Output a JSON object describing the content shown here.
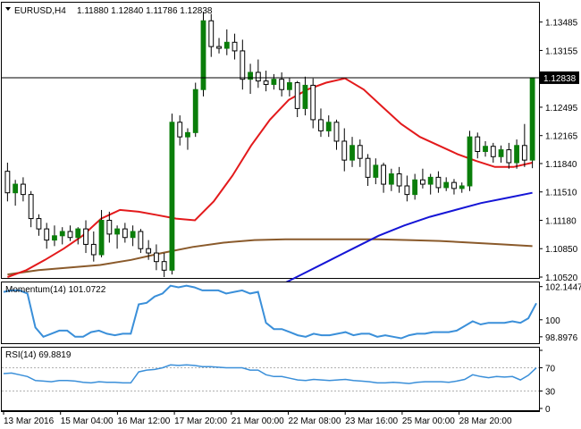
{
  "header": {
    "symbol": "EURUSD,H4",
    "ohlc": "1.11880 1.12840 1.11786 1.12838"
  },
  "colors": {
    "bull_candle": "#0a7e0a",
    "bear_candle": "#0a7e0a",
    "sma_short": "#e31a1c",
    "sma_mid": "#1515d6",
    "sma_long": "#8a5a2b",
    "momentum_line": "#3a8fd9",
    "rsi_line": "#3a8fd9",
    "price_tag_bg": "#000000",
    "price_tag_text": "#ffffff"
  },
  "price_axis": {
    "ticks": [
      "1.13485",
      "1.13155",
      "1.12838",
      "1.12495",
      "1.12165",
      "1.11840",
      "1.11510",
      "1.11180",
      "1.10850",
      "1.10520"
    ],
    "current_tag": "1.12838"
  },
  "x_axis": {
    "labels": [
      "13 Mar 2016",
      "15 Mar 04:00",
      "16 Mar 12:00",
      "17 Mar 20:00",
      "21 Mar 00:00",
      "22 Mar 08:00",
      "23 Mar 16:00",
      "25 Mar 00:00",
      "28 Mar 20:00"
    ]
  },
  "momentum": {
    "title": "Momentum(14) 101.0722",
    "axis_labels": [
      "102.1447",
      "100",
      "98.8976"
    ]
  },
  "rsi": {
    "title": "RSI(14) 69.8819",
    "axis_labels": [
      "70",
      "30",
      "0"
    ]
  },
  "chart_data": [
    {
      "type": "candlestick",
      "title": "EURUSD,H4",
      "ylim": [
        1.1052,
        1.137
      ],
      "candles": [
        {
          "o": 1.1175,
          "h": 1.1185,
          "l": 1.114,
          "c": 1.115
        },
        {
          "o": 1.115,
          "h": 1.1165,
          "l": 1.1135,
          "c": 1.116
        },
        {
          "o": 1.116,
          "h": 1.1168,
          "l": 1.114,
          "c": 1.1148
        },
        {
          "o": 1.1148,
          "h": 1.1152,
          "l": 1.111,
          "c": 1.112
        },
        {
          "o": 1.112,
          "h": 1.1125,
          "l": 1.11,
          "c": 1.1108
        },
        {
          "o": 1.1108,
          "h": 1.1115,
          "l": 1.1085,
          "c": 1.1095
        },
        {
          "o": 1.1095,
          "h": 1.1112,
          "l": 1.1088,
          "c": 1.11
        },
        {
          "o": 1.11,
          "h": 1.111,
          "l": 1.109,
          "c": 1.1105
        },
        {
          "o": 1.1105,
          "h": 1.1112,
          "l": 1.1094,
          "c": 1.1098
        },
        {
          "o": 1.1098,
          "h": 1.111,
          "l": 1.109,
          "c": 1.1108
        },
        {
          "o": 1.1108,
          "h": 1.1118,
          "l": 1.108,
          "c": 1.109
        },
        {
          "o": 1.109,
          "h": 1.1105,
          "l": 1.107,
          "c": 1.1078
        },
        {
          "o": 1.1078,
          "h": 1.113,
          "l": 1.1075,
          "c": 1.1118
        },
        {
          "o": 1.1118,
          "h": 1.1128,
          "l": 1.1092,
          "c": 1.1102
        },
        {
          "o": 1.1102,
          "h": 1.1112,
          "l": 1.1085,
          "c": 1.1108
        },
        {
          "o": 1.1108,
          "h": 1.1115,
          "l": 1.1092,
          "c": 1.1098
        },
        {
          "o": 1.1098,
          "h": 1.1112,
          "l": 1.1088,
          "c": 1.1105
        },
        {
          "o": 1.1105,
          "h": 1.1108,
          "l": 1.108,
          "c": 1.1085
        },
        {
          "o": 1.1085,
          "h": 1.1095,
          "l": 1.1072,
          "c": 1.108
        },
        {
          "o": 1.108,
          "h": 1.109,
          "l": 1.106,
          "c": 1.107
        },
        {
          "o": 1.107,
          "h": 1.108,
          "l": 1.1052,
          "c": 1.106
        },
        {
          "o": 1.106,
          "h": 1.1242,
          "l": 1.1055,
          "c": 1.1232
        },
        {
          "o": 1.1232,
          "h": 1.124,
          "l": 1.1205,
          "c": 1.1215
        },
        {
          "o": 1.1215,
          "h": 1.1225,
          "l": 1.12,
          "c": 1.122
        },
        {
          "o": 1.122,
          "h": 1.1278,
          "l": 1.1215,
          "c": 1.127
        },
        {
          "o": 1.127,
          "h": 1.136,
          "l": 1.1262,
          "c": 1.135
        },
        {
          "o": 1.135,
          "h": 1.1358,
          "l": 1.1308,
          "c": 1.132
        },
        {
          "o": 1.132,
          "h": 1.133,
          "l": 1.1312,
          "c": 1.1318
        },
        {
          "o": 1.1318,
          "h": 1.134,
          "l": 1.131,
          "c": 1.1325
        },
        {
          "o": 1.1325,
          "h": 1.1335,
          "l": 1.1305,
          "c": 1.1315
        },
        {
          "o": 1.1315,
          "h": 1.1328,
          "l": 1.127,
          "c": 1.1282
        },
        {
          "o": 1.1282,
          "h": 1.13,
          "l": 1.1265,
          "c": 1.129
        },
        {
          "o": 1.129,
          "h": 1.1305,
          "l": 1.1272,
          "c": 1.128
        },
        {
          "o": 1.128,
          "h": 1.1292,
          "l": 1.1268,
          "c": 1.1276
        },
        {
          "o": 1.1276,
          "h": 1.1288,
          "l": 1.127,
          "c": 1.1282
        },
        {
          "o": 1.1282,
          "h": 1.129,
          "l": 1.1262,
          "c": 1.127
        },
        {
          "o": 1.127,
          "h": 1.1284,
          "l": 1.1262,
          "c": 1.1278
        },
        {
          "o": 1.1278,
          "h": 1.128,
          "l": 1.1238,
          "c": 1.1248
        },
        {
          "o": 1.1248,
          "h": 1.1285,
          "l": 1.124,
          "c": 1.1275
        },
        {
          "o": 1.1275,
          "h": 1.1283,
          "l": 1.1225,
          "c": 1.1235
        },
        {
          "o": 1.1235,
          "h": 1.1248,
          "l": 1.1215,
          "c": 1.1222
        },
        {
          "o": 1.1222,
          "h": 1.124,
          "l": 1.1215,
          "c": 1.1232
        },
        {
          "o": 1.1232,
          "h": 1.1235,
          "l": 1.12,
          "c": 1.121
        },
        {
          "o": 1.121,
          "h": 1.1225,
          "l": 1.1175,
          "c": 1.1188
        },
        {
          "o": 1.1188,
          "h": 1.1215,
          "l": 1.118,
          "c": 1.1205
        },
        {
          "o": 1.1205,
          "h": 1.1212,
          "l": 1.118,
          "c": 1.119
        },
        {
          "o": 1.119,
          "h": 1.1195,
          "l": 1.1158,
          "c": 1.1168
        },
        {
          "o": 1.1168,
          "h": 1.119,
          "l": 1.116,
          "c": 1.1182
        },
        {
          "o": 1.1182,
          "h": 1.1185,
          "l": 1.115,
          "c": 1.116
        },
        {
          "o": 1.116,
          "h": 1.1178,
          "l": 1.1152,
          "c": 1.1172
        },
        {
          "o": 1.1172,
          "h": 1.118,
          "l": 1.115,
          "c": 1.1158
        },
        {
          "o": 1.1158,
          "h": 1.117,
          "l": 1.114,
          "c": 1.1148
        },
        {
          "o": 1.1148,
          "h": 1.1172,
          "l": 1.1142,
          "c": 1.1165
        },
        {
          "o": 1.1165,
          "h": 1.1178,
          "l": 1.1155,
          "c": 1.116
        },
        {
          "o": 1.116,
          "h": 1.1172,
          "l": 1.1148,
          "c": 1.1168
        },
        {
          "o": 1.1168,
          "h": 1.1175,
          "l": 1.115,
          "c": 1.1156
        },
        {
          "o": 1.1156,
          "h": 1.1168,
          "l": 1.1152,
          "c": 1.1162
        },
        {
          "o": 1.1162,
          "h": 1.1166,
          "l": 1.1148,
          "c": 1.1155
        },
        {
          "o": 1.1155,
          "h": 1.1162,
          "l": 1.115,
          "c": 1.1158
        },
        {
          "o": 1.1158,
          "h": 1.1222,
          "l": 1.1152,
          "c": 1.1215
        },
        {
          "o": 1.1215,
          "h": 1.122,
          "l": 1.119,
          "c": 1.1198
        },
        {
          "o": 1.1198,
          "h": 1.121,
          "l": 1.1192,
          "c": 1.1204
        },
        {
          "o": 1.1204,
          "h": 1.1208,
          "l": 1.1185,
          "c": 1.1192
        },
        {
          "o": 1.1192,
          "h": 1.1205,
          "l": 1.1185,
          "c": 1.12
        },
        {
          "o": 1.12,
          "h": 1.1208,
          "l": 1.1178,
          "c": 1.1185
        },
        {
          "o": 1.1185,
          "h": 1.1212,
          "l": 1.1178,
          "c": 1.1205
        },
        {
          "o": 1.1205,
          "h": 1.123,
          "l": 1.118,
          "c": 1.1188
        },
        {
          "o": 1.1188,
          "h": 1.1284,
          "l": 1.11786,
          "c": 1.12838
        }
      ],
      "sma_short": [
        1.1052,
        1.106,
        1.1072,
        1.1085,
        1.11,
        1.112,
        1.113,
        1.1128,
        1.1124,
        1.112,
        1.1118,
        1.114,
        1.117,
        1.1205,
        1.1235,
        1.1258,
        1.127,
        1.1278,
        1.1283,
        1.127,
        1.125,
        1.123,
        1.1215,
        1.1205,
        1.1195,
        1.1187,
        1.118,
        1.118,
        1.1185
      ],
      "sma_mid": [
        1.103,
        1.104,
        1.1055,
        1.107,
        1.1085,
        1.11,
        1.1112,
        1.1122,
        1.113,
        1.1138,
        1.1144,
        1.115
      ],
      "sma_long": [
        1.1055,
        1.106,
        1.1063,
        1.1066,
        1.1072,
        1.108,
        1.1087,
        1.1092,
        1.1095,
        1.1096,
        1.1096,
        1.1096,
        1.1096,
        1.1095,
        1.1094,
        1.1092,
        1.109,
        1.1088
      ]
    },
    {
      "type": "line",
      "title": "Momentum(14) 101.0722",
      "ylim": [
        98.6,
        102.3
      ],
      "values": [
        101.8,
        101.9,
        101.9,
        101.7,
        99.5,
        98.9,
        99.1,
        99.3,
        99.3,
        98.9,
        98.9,
        99.2,
        99.3,
        99.1,
        99.0,
        99.1,
        99.1,
        101.0,
        101.1,
        101.5,
        101.7,
        102.2,
        102.1,
        102.2,
        102.1,
        101.9,
        101.9,
        101.9,
        101.7,
        101.8,
        101.9,
        101.7,
        101.8,
        99.8,
        99.4,
        99.4,
        99.2,
        99.0,
        98.9,
        99.1,
        99.0,
        99.0,
        99.1,
        99.2,
        99.0,
        99.1,
        99.1,
        98.9,
        99.0,
        98.9,
        98.8,
        99.0,
        99.1,
        99.1,
        99.2,
        99.2,
        99.2,
        99.3,
        99.6,
        99.9,
        99.7,
        99.8,
        99.8,
        99.8,
        99.9,
        99.8,
        100.1,
        101.07
      ]
    },
    {
      "type": "line",
      "title": "RSI(14) 69.8819",
      "ylim": [
        0,
        100
      ],
      "levels": [
        70,
        30
      ],
      "values": [
        60,
        61,
        58,
        55,
        48,
        47,
        46,
        48,
        48,
        47,
        45,
        44,
        46,
        45,
        45,
        44,
        44,
        63,
        66,
        67,
        70,
        75,
        74,
        75,
        74,
        72,
        72,
        71,
        70,
        70,
        70,
        66,
        66,
        58,
        55,
        55,
        52,
        49,
        48,
        50,
        49,
        48,
        49,
        50,
        48,
        47,
        46,
        44,
        44,
        45,
        44,
        43,
        45,
        46,
        46,
        46,
        45,
        47,
        50,
        58,
        55,
        53,
        55,
        54,
        55,
        49,
        57,
        69.88
      ]
    }
  ]
}
